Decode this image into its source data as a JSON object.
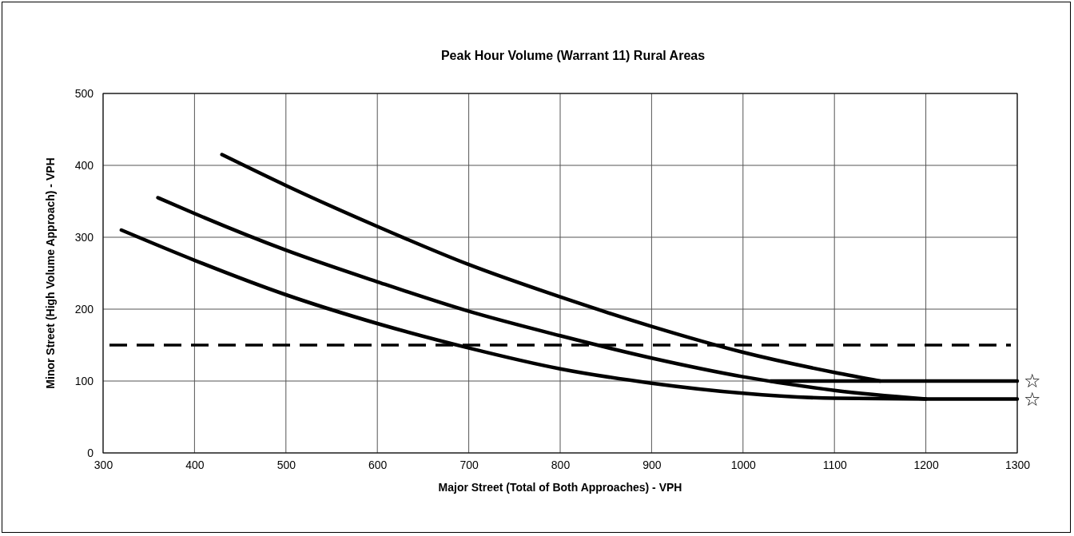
{
  "chart_data": {
    "type": "line",
    "title": "Peak Hour Volume (Warrant 11) Rural Areas",
    "xlabel": "Major Street (Total of Both Approaches) - VPH",
    "ylabel": "Minor Street (High Volume Approach) - VPH",
    "xlim": [
      300,
      1300
    ],
    "xticks": [
      300,
      400,
      500,
      600,
      700,
      800,
      900,
      1000,
      1100,
      1200,
      1300
    ],
    "ylim": [
      0,
      500
    ],
    "yticks": [
      0,
      100,
      200,
      300,
      400,
      500
    ],
    "grid": true,
    "marker": "none",
    "line_style": "solid",
    "series": [
      {
        "color": "#000000",
        "x": [
          430,
          500,
          600,
          700,
          800,
          900,
          1000,
          1100,
          1150
        ],
        "values": [
          415,
          372,
          315,
          262,
          217,
          176,
          140,
          112,
          100
        ]
      },
      {
        "color": "#000000",
        "x": [
          1030,
          1300
        ],
        "values": [
          100,
          100
        ]
      },
      {
        "color": "#000000",
        "x": [
          360,
          400,
          500,
          600,
          700,
          800,
          900,
          1000,
          1100,
          1200
        ],
        "values": [
          355,
          333,
          282,
          238,
          197,
          163,
          132,
          106,
          87,
          75
        ]
      },
      {
        "color": "#000000",
        "x": [
          320,
          400,
          500,
          600,
          700,
          800,
          900,
          1000,
          1100,
          1200,
          1300
        ],
        "values": [
          310,
          268,
          220,
          180,
          146,
          117,
          97,
          83,
          76,
          75,
          75
        ]
      }
    ],
    "ref_lines": [
      {
        "axis": "y",
        "value": 150,
        "color": "#000000",
        "line_style": "dashed"
      }
    ],
    "annotations": [
      {
        "text": "☆",
        "x": 1300,
        "y": 100
      },
      {
        "text": "☆",
        "x": 1300,
        "y": 75
      }
    ]
  }
}
